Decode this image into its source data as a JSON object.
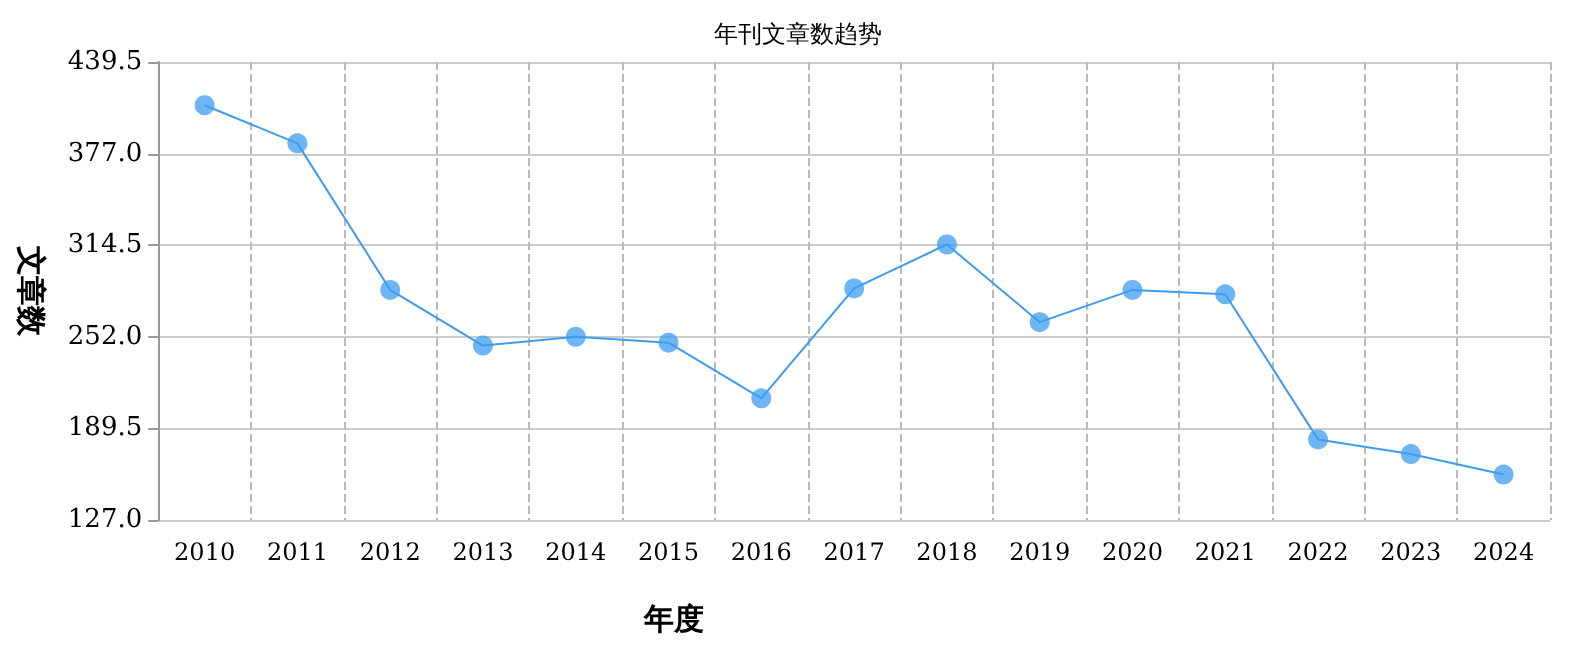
{
  "chart_data": {
    "type": "line",
    "title": "年刊文章数趋势",
    "xlabel": "年度",
    "ylabel": "文章数",
    "categories": [
      "2010",
      "2011",
      "2012",
      "2013",
      "2014",
      "2015",
      "2016",
      "2017",
      "2018",
      "2019",
      "2020",
      "2021",
      "2022",
      "2023",
      "2024"
    ],
    "series": [
      {
        "color": "#3d9cf0",
        "values": [
          410,
          384,
          284,
          246,
          252,
          248,
          210,
          285,
          315,
          262,
          284,
          281,
          182,
          172,
          158
        ]
      }
    ],
    "ylim": [
      127,
      439.5
    ],
    "yticks": [
      {
        "value": 127,
        "label": "127.0"
      },
      {
        "value": 189.5,
        "label": "189.5"
      },
      {
        "value": 252,
        "label": "252.0"
      },
      {
        "value": 314.5,
        "label": "314.5"
      },
      {
        "value": 377,
        "label": "377.0"
      },
      {
        "value": 439.5,
        "label": "439.5"
      }
    ],
    "grid": true,
    "marker": "circle",
    "line_style": "solid"
  }
}
